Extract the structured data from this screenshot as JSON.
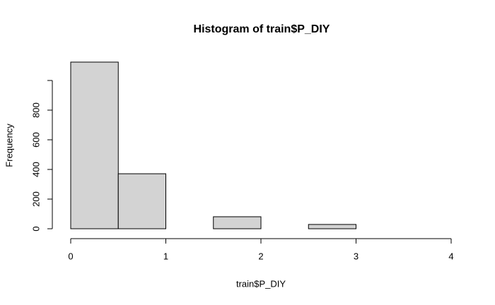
{
  "chart_data": {
    "type": "histogram",
    "title": "Histogram of train$P_DIY",
    "x_label": "train$P_DIY",
    "y_label": "Frequency",
    "bins": [
      0,
      0.5,
      1,
      1.5,
      2,
      2.5,
      3,
      3.5,
      4
    ],
    "values": [
      1124,
      371,
      0,
      81,
      0,
      29,
      0,
      0
    ],
    "color": "#d3d3d3",
    "xlim": [
      0,
      4
    ],
    "xticks": [
      0,
      1,
      2,
      3,
      4
    ],
    "ylim": [
      0,
      1180
    ],
    "yticks": [
      0,
      200,
      400,
      600,
      800,
      {
        "value": 1000,
        "label": null
      }
    ]
  }
}
